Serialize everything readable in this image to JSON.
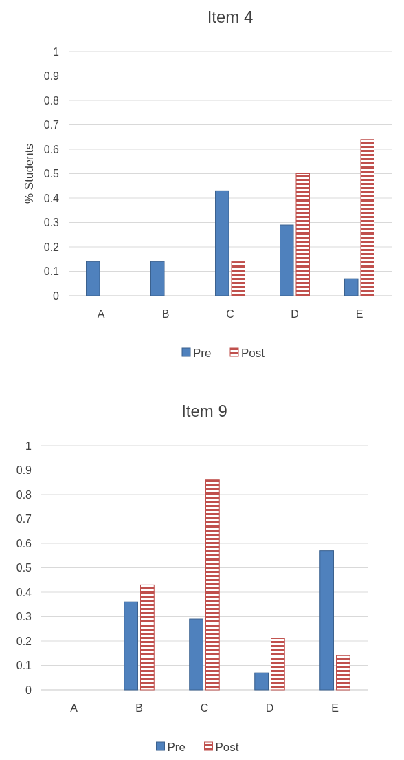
{
  "chart_data": [
    {
      "type": "bar",
      "title": "Item 4",
      "ylabel": "% Students",
      "categories": [
        "A",
        "B",
        "C",
        "D",
        "E"
      ],
      "series": [
        {
          "name": "Pre",
          "color": "#4f81bd",
          "values": [
            0.14,
            0.14,
            0.43,
            0.29,
            0.07
          ]
        },
        {
          "name": "Post",
          "color": "#c0504d",
          "values": [
            0,
            0,
            0.14,
            0.5,
            0.64
          ]
        }
      ],
      "ylim": [
        0,
        1
      ],
      "yticks": [
        0,
        0.1,
        0.2,
        0.3,
        0.4,
        0.5,
        0.6,
        0.7,
        0.8,
        0.9,
        1
      ],
      "grid": "y",
      "legend": "bottom"
    },
    {
      "type": "bar",
      "title": "Item 9",
      "categories": [
        "A",
        "B",
        "C",
        "D",
        "E"
      ],
      "series": [
        {
          "name": "Pre",
          "color": "#4f81bd",
          "values": [
            0,
            0.36,
            0.29,
            0.07,
            0.57
          ]
        },
        {
          "name": "Post",
          "color": "#c0504d",
          "values": [
            0,
            0.43,
            0.86,
            0.21,
            0.14
          ]
        }
      ],
      "ylim": [
        0,
        1
      ],
      "yticks": [
        0,
        0.1,
        0.2,
        0.3,
        0.4,
        0.5,
        0.6,
        0.7,
        0.8,
        0.9,
        1
      ],
      "grid": "y",
      "legend": "bottom"
    }
  ]
}
